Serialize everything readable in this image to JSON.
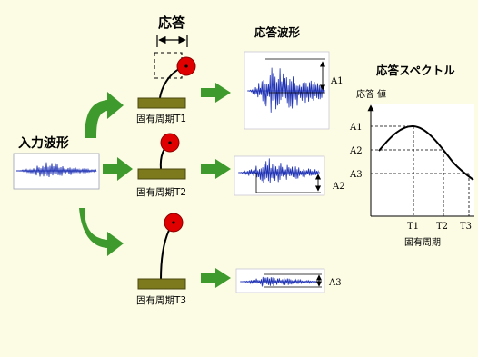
{
  "labels": {
    "response": "応答",
    "input_wave": "入力波形",
    "response_wave": "応答波形",
    "response_spectrum": "応答スペクトル",
    "response_value": "応答 値",
    "natural_period": "固有周期",
    "period_t1": "固有周期T1",
    "period_t2": "固有周期T2",
    "period_t3": "固有周期T3",
    "wave_a1": "A1",
    "wave_a2": "A2",
    "wave_a3": "A3"
  },
  "chart_data": {
    "type": "line",
    "ylabel": "応答 値",
    "xlabel": "固有周期",
    "x_ticks": [
      "T1",
      "T2",
      "T3"
    ],
    "y_ticks": [
      "A1",
      "A2",
      "A3"
    ],
    "points": [
      {
        "x": "T1",
        "y": "A1"
      },
      {
        "x": "T2",
        "y": "A2"
      },
      {
        "x": "T3",
        "y": "A3"
      }
    ]
  },
  "colors": {
    "background": "#fcfbe3",
    "arrow_green": "#3f9a2e",
    "mass_red": "#e00000",
    "base_olive": "#7c7a1c",
    "wave_blue": "#1f32b4",
    "curve_black": "#000000"
  }
}
